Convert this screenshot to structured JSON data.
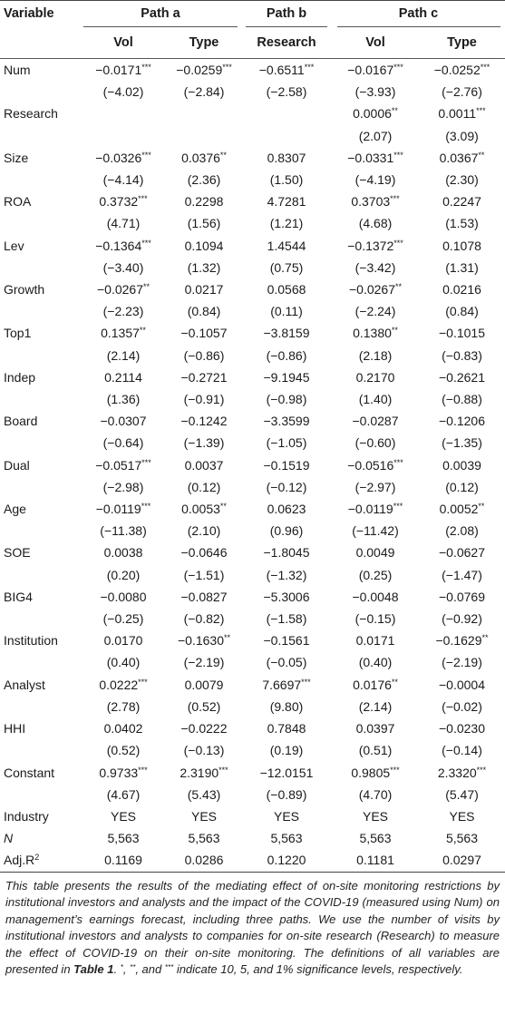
{
  "header": {
    "variable_label": "Variable",
    "groups": [
      "Path a",
      "Path b",
      "Path c"
    ],
    "columns": [
      "Vol",
      "Type",
      "Research",
      "Vol",
      "Type"
    ]
  },
  "rows": [
    {
      "var": "Num",
      "vals": [
        "−0.0171***",
        "−0.0259***",
        "−0.6511***",
        "−0.0167***",
        "−0.0252***"
      ]
    },
    {
      "var": "",
      "vals": [
        "(−4.02)",
        "(−2.84)",
        "(−2.58)",
        "(−3.93)",
        "(−2.76)"
      ]
    },
    {
      "var": "Research",
      "vals": [
        "",
        "",
        "",
        "0.0006**",
        "0.0011***"
      ]
    },
    {
      "var": "",
      "vals": [
        "",
        "",
        "",
        "(2.07)",
        "(3.09)"
      ]
    },
    {
      "var": "Size",
      "vals": [
        "−0.0326***",
        "0.0376**",
        "0.8307",
        "−0.0331***",
        "0.0367**"
      ]
    },
    {
      "var": "",
      "vals": [
        "(−4.14)",
        "(2.36)",
        "(1.50)",
        "(−4.19)",
        "(2.30)"
      ]
    },
    {
      "var": "ROA",
      "vals": [
        "0.3732***",
        "0.2298",
        "4.7281",
        "0.3703***",
        "0.2247"
      ]
    },
    {
      "var": "",
      "vals": [
        "(4.71)",
        "(1.56)",
        "(1.21)",
        "(4.68)",
        "(1.53)"
      ]
    },
    {
      "var": "Lev",
      "vals": [
        "−0.1364***",
        "0.1094",
        "1.4544",
        "−0.1372***",
        "0.1078"
      ]
    },
    {
      "var": "",
      "vals": [
        "(−3.40)",
        "(1.32)",
        "(0.75)",
        "(−3.42)",
        "(1.31)"
      ]
    },
    {
      "var": "Growth",
      "vals": [
        "−0.0267**",
        "0.0217",
        "0.0568",
        "−0.0267**",
        "0.0216"
      ]
    },
    {
      "var": "",
      "vals": [
        "(−2.23)",
        "(0.84)",
        "(0.11)",
        "(−2.24)",
        "(0.84)"
      ]
    },
    {
      "var": "Top1",
      "vals": [
        "0.1357**",
        "−0.1057",
        "−3.8159",
        "0.1380**",
        "−0.1015"
      ]
    },
    {
      "var": "",
      "vals": [
        "(2.14)",
        "(−0.86)",
        "(−0.86)",
        "(2.18)",
        "(−0.83)"
      ]
    },
    {
      "var": "Indep",
      "vals": [
        "0.2114",
        "−0.2721",
        "−9.1945",
        "0.2170",
        "−0.2621"
      ]
    },
    {
      "var": "",
      "vals": [
        "(1.36)",
        "(−0.91)",
        "(−0.98)",
        "(1.40)",
        "(−0.88)"
      ]
    },
    {
      "var": "Board",
      "vals": [
        "−0.0307",
        "−0.1242",
        "−3.3599",
        "−0.0287",
        "−0.1206"
      ]
    },
    {
      "var": "",
      "vals": [
        "(−0.64)",
        "(−1.39)",
        "(−1.05)",
        "(−0.60)",
        "(−1.35)"
      ]
    },
    {
      "var": "Dual",
      "vals": [
        "−0.0517***",
        "0.0037",
        "−0.1519",
        "−0.0516***",
        "0.0039"
      ]
    },
    {
      "var": "",
      "vals": [
        "(−2.98)",
        "(0.12)",
        "(−0.12)",
        "(−2.97)",
        "(0.12)"
      ]
    },
    {
      "var": "Age",
      "vals": [
        "−0.0119***",
        "0.0053**",
        "0.0623",
        "−0.0119***",
        "0.0052**"
      ]
    },
    {
      "var": "",
      "vals": [
        "(−11.38)",
        "(2.10)",
        "(0.96)",
        "(−11.42)",
        "(2.08)"
      ]
    },
    {
      "var": "SOE",
      "vals": [
        "0.0038",
        "−0.0646",
        "−1.8045",
        "0.0049",
        "−0.0627"
      ]
    },
    {
      "var": "",
      "vals": [
        "(0.20)",
        "(−1.51)",
        "(−1.32)",
        "(0.25)",
        "(−1.47)"
      ]
    },
    {
      "var": "BIG4",
      "vals": [
        "−0.0080",
        "−0.0827",
        "−5.3006",
        "−0.0048",
        "−0.0769"
      ]
    },
    {
      "var": "",
      "vals": [
        "(−0.25)",
        "(−0.82)",
        "(−1.58)",
        "(−0.15)",
        "(−0.92)"
      ]
    },
    {
      "var": "Institution",
      "vals": [
        "0.0170",
        "−0.1630**",
        "−0.1561",
        "0.0171",
        "−0.1629**"
      ]
    },
    {
      "var": "",
      "vals": [
        "(0.40)",
        "(−2.19)",
        "(−0.05)",
        "(0.40)",
        "(−2.19)"
      ]
    },
    {
      "var": "Analyst",
      "vals": [
        "0.0222***",
        "0.0079",
        "7.6697***",
        "0.0176**",
        "−0.0004"
      ]
    },
    {
      "var": "",
      "vals": [
        "(2.78)",
        "(0.52)",
        "(9.80)",
        "(2.14)",
        "(−0.02)"
      ]
    },
    {
      "var": "HHI",
      "vals": [
        "0.0402",
        "−0.0222",
        "0.7848",
        "0.0397",
        "−0.0230"
      ]
    },
    {
      "var": "",
      "vals": [
        "(0.52)",
        "(−0.13)",
        "(0.19)",
        "(0.51)",
        "(−0.14)"
      ]
    },
    {
      "var": "Constant",
      "vals": [
        "0.9733***",
        "2.3190***",
        "−12.0151",
        "0.9805***",
        "2.3320***"
      ]
    },
    {
      "var": "",
      "vals": [
        "(4.67)",
        "(5.43)",
        "(−0.89)",
        "(4.70)",
        "(5.47)"
      ]
    },
    {
      "var": "Industry",
      "vals": [
        "YES",
        "YES",
        "YES",
        "YES",
        "YES"
      ]
    },
    {
      "var": "N",
      "vals": [
        "5,563",
        "5,563",
        "5,563",
        "5,563",
        "5,563"
      ]
    },
    {
      "var": "Adj.R2",
      "vals": [
        "0.1169",
        "0.0286",
        "0.1220",
        "0.1181",
        "0.0297"
      ]
    }
  ],
  "note": {
    "part1": "This table presents the results of the mediating effect of on-site monitoring restrictions by institutional investors and analysts and the impact of the COVID-19 (measured using Num) on management’s earnings forecast, including three paths. We use the number of visits by institutional investors and analysts to companies for on-site research (Research) to measure the effect of COVID-19 on their on-site monitoring. The definitions of all variables are presented in ",
    "table_ref": "Table 1",
    "part2": ". ",
    "sig1": "*",
    "sep1": ", ",
    "sig2": "**",
    "sep2": ", and ",
    "sig3": "***",
    "part3": " indicate 10, 5, and 1% significance levels, respectively."
  }
}
